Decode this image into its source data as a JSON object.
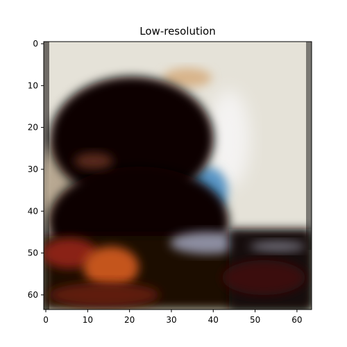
{
  "title": "Low-resolution",
  "image": {
    "description": "blurry low-resolution image (64x64 grid)",
    "colors": {
      "background_light": "#e6e3da",
      "silhouette_dark": "#0a0302",
      "blue_patch": "#5a96c8",
      "orange_patch": "#c8531e",
      "grey_patch": "#8a8c9c",
      "warm_blob": "#d8b890"
    }
  },
  "chart_data": {
    "type": "heatmap",
    "title": "Low-resolution",
    "xlabel": "",
    "ylabel": "",
    "xlim": [
      -0.5,
      63.5
    ],
    "ylim": [
      63.5,
      -0.5
    ],
    "x_ticks": [
      "0",
      "10",
      "20",
      "30",
      "40",
      "50",
      "60"
    ],
    "y_ticks": [
      "0",
      "10",
      "20",
      "30",
      "40",
      "50",
      "60"
    ],
    "grid": false
  }
}
